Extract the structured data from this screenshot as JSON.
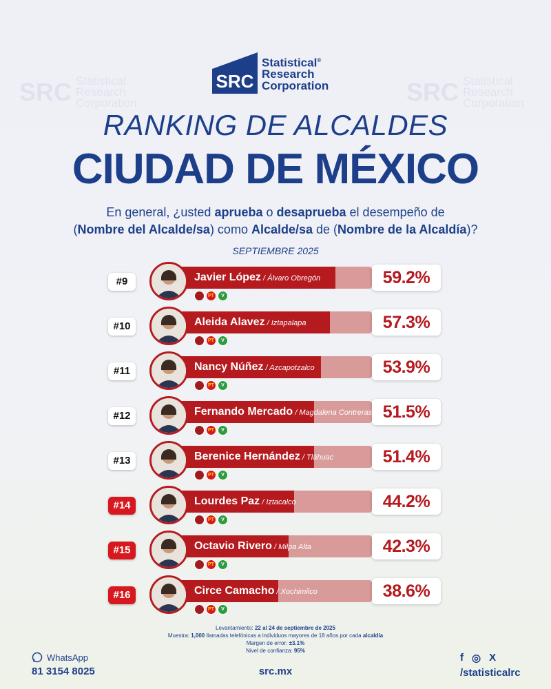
{
  "brand": {
    "logo_text": "SRC",
    "name_lines": [
      "Statistical",
      "Research",
      "Corporation"
    ],
    "registered": "®"
  },
  "watermark": {
    "box": "SRC",
    "lines": [
      "Statistical",
      "Research",
      "Corporation"
    ]
  },
  "title_top": "RANKING DE ALCALDES",
  "title_main": "CIUDAD DE MÉXICO",
  "question": {
    "p1": "En general, ¿usted ",
    "b1": "aprueba",
    "p2": " o ",
    "b2": "desaprueba",
    "p3": " el desempeño de",
    "p4": "(",
    "b3": "Nombre del Alcalde/sa",
    "p5": ") como ",
    "b4": "Alcalde/sa",
    "p6": " de (",
    "b5": "Nombre de la Alcaldía",
    "p7": ")?"
  },
  "month": "SEPTIEMBRE 2025",
  "party_labels": [
    "",
    "PT",
    "V"
  ],
  "chart_data": {
    "type": "bar",
    "title": "RANKING DE ALCALDES CIUDAD DE MÉXICO",
    "subtitle": "SEPTIEMBRE 2025",
    "ylim": [
      0,
      100
    ],
    "unit": "%",
    "rows": [
      {
        "rank": "#9",
        "name": "Javier López",
        "place": "Álvaro Obregón",
        "value": 59.2,
        "label": "59.2%",
        "highlight": false
      },
      {
        "rank": "#10",
        "name": "Aleida Alavez",
        "place": "Iztapalapa",
        "value": 57.3,
        "label": "57.3%",
        "highlight": false
      },
      {
        "rank": "#11",
        "name": "Nancy Núñez",
        "place": "Azcapotzalco",
        "value": 53.9,
        "label": "53.9%",
        "highlight": false
      },
      {
        "rank": "#12",
        "name": "Fernando Mercado",
        "place": "Magdalena Contreras",
        "value": 51.5,
        "label": "51.5%",
        "highlight": false
      },
      {
        "rank": "#13",
        "name": "Berenice Hernández",
        "place": "Tláhuac",
        "value": 51.4,
        "label": "51.4%",
        "highlight": false
      },
      {
        "rank": "#14",
        "name": "Lourdes Paz",
        "place": "Iztacalco",
        "value": 44.2,
        "label": "44.2%",
        "highlight": true
      },
      {
        "rank": "#15",
        "name": "Octavio Rivero",
        "place": "Milpa Alta",
        "value": 42.3,
        "label": "42.3%",
        "highlight": true
      },
      {
        "rank": "#16",
        "name": "Circe Camacho",
        "place": "Xochimilco",
        "value": 38.6,
        "label": "38.6%",
        "highlight": true
      }
    ]
  },
  "footer": {
    "levantamiento_label": "Levantamiento:",
    "levantamiento_value": " 22 al 24 de septiembre de 2025",
    "muestra_label": "Muestra: ",
    "muestra_bold": "1,000",
    "muestra_text": " llamadas telefónicas a individuos mayores de 18 años por cada ",
    "muestra_bold2": "alcaldía",
    "margen_label": "Margen de error: ",
    "margen_value": "±3.1%",
    "nivel_label": "Nivel de confianza: ",
    "nivel_value": "95%"
  },
  "contact": {
    "whatsapp_label": "WhatsApp",
    "phone": "81 3154 8025"
  },
  "website": "src.mx",
  "social": {
    "handle": "/statisticalrc",
    "icons": [
      "f",
      "◎",
      "X"
    ]
  }
}
